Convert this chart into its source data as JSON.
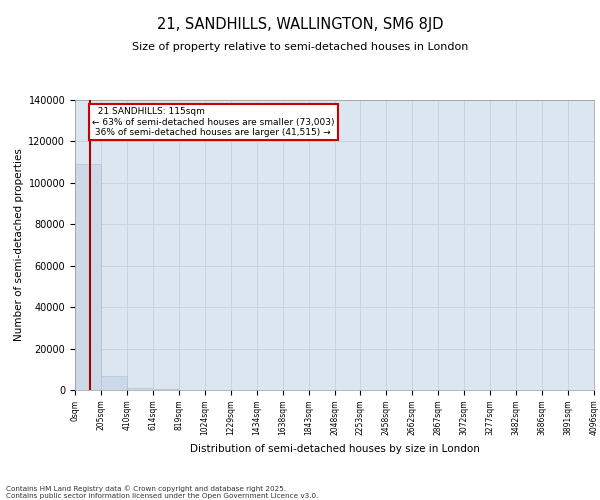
{
  "title": "21, SANDHILLS, WALLINGTON, SM6 8JD",
  "subtitle": "Size of property relative to semi-detached houses in London",
  "xlabel": "Distribution of semi-detached houses by size in London",
  "ylabel": "Number of semi-detached properties",
  "property_size": 115,
  "property_label": "21 SANDHILLS: 115sqm",
  "pct_smaller": 63,
  "count_smaller": 73003,
  "pct_larger": 36,
  "count_larger": 41515,
  "footer": "Contains HM Land Registry data © Crown copyright and database right 2025.\nContains public sector information licensed under the Open Government Licence v3.0.",
  "bar_color": "#ccd9e8",
  "bar_edge_color": "#aabcce",
  "line_color": "#aa0000",
  "annotation_box_color": "#cc0000",
  "grid_color": "#c8d4de",
  "background_color": "#dce6f0",
  "ylim": [
    0,
    140000
  ],
  "bin_edges": [
    0,
    205,
    410,
    614,
    819,
    1024,
    1229,
    1434,
    1638,
    1843,
    2048,
    2253,
    2458,
    2662,
    2867,
    3072,
    3277,
    3482,
    3686,
    3891,
    4096
  ],
  "bin_labels": [
    "0sqm",
    "205sqm",
    "410sqm",
    "614sqm",
    "819sqm",
    "1024sqm",
    "1229sqm",
    "1434sqm",
    "1638sqm",
    "1843sqm",
    "2048sqm",
    "2253sqm",
    "2458sqm",
    "2662sqm",
    "2867sqm",
    "3072sqm",
    "3277sqm",
    "3482sqm",
    "3686sqm",
    "3891sqm",
    "4096sqm"
  ],
  "bar_heights": [
    109000,
    6800,
    1200,
    400,
    200,
    120,
    80,
    60,
    45,
    35,
    28,
    22,
    18,
    14,
    11,
    9,
    7,
    6,
    4,
    3
  ],
  "yticks": [
    0,
    20000,
    40000,
    60000,
    80000,
    100000,
    120000,
    140000
  ],
  "ytick_labels": [
    "0",
    "20000",
    "40000",
    "60000",
    "80000",
    "100000",
    "120000",
    "140000"
  ]
}
